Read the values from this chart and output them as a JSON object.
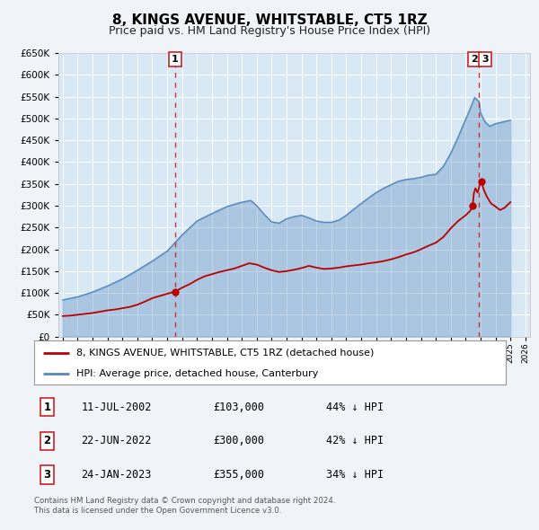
{
  "title": "8, KINGS AVENUE, WHITSTABLE, CT5 1RZ",
  "subtitle": "Price paid vs. HM Land Registry's House Price Index (HPI)",
  "title_fontsize": 11,
  "subtitle_fontsize": 9,
  "background_color": "#f0f4f8",
  "plot_bg_color": "#d8e8f5",
  "grid_color": "#ffffff",
  "red_line_color": "#bb0000",
  "blue_line_color": "#5588bb",
  "dashed_vline_color": "#cc2222",
  "ylim": [
    0,
    650000
  ],
  "xlim_start": 1994.7,
  "xlim_end": 2026.3,
  "sale_points": [
    {
      "date_num": 2002.53,
      "price": 103000
    },
    {
      "date_num": 2022.47,
      "price": 300000
    },
    {
      "date_num": 2023.07,
      "price": 355000
    }
  ],
  "vline_dates": [
    2002.53,
    2022.9
  ],
  "legend_entries": [
    "8, KINGS AVENUE, WHITSTABLE, CT5 1RZ (detached house)",
    "HPI: Average price, detached house, Canterbury"
  ],
  "table_rows": [
    {
      "num": "1",
      "date": "11-JUL-2002",
      "price": "£103,000",
      "pct": "44% ↓ HPI"
    },
    {
      "num": "2",
      "date": "22-JUN-2022",
      "price": "£300,000",
      "pct": "42% ↓ HPI"
    },
    {
      "num": "3",
      "date": "24-JAN-2023",
      "price": "£355,000",
      "pct": "34% ↓ HPI"
    }
  ],
  "footnote": "Contains HM Land Registry data © Crown copyright and database right 2024.\nThis data is licensed under the Open Government Licence v3.0.",
  "label_boxes": [
    {
      "x": 2002.53,
      "label": "1"
    },
    {
      "x": 2022.6,
      "label": "2"
    },
    {
      "x": 2023.3,
      "label": "3"
    }
  ]
}
